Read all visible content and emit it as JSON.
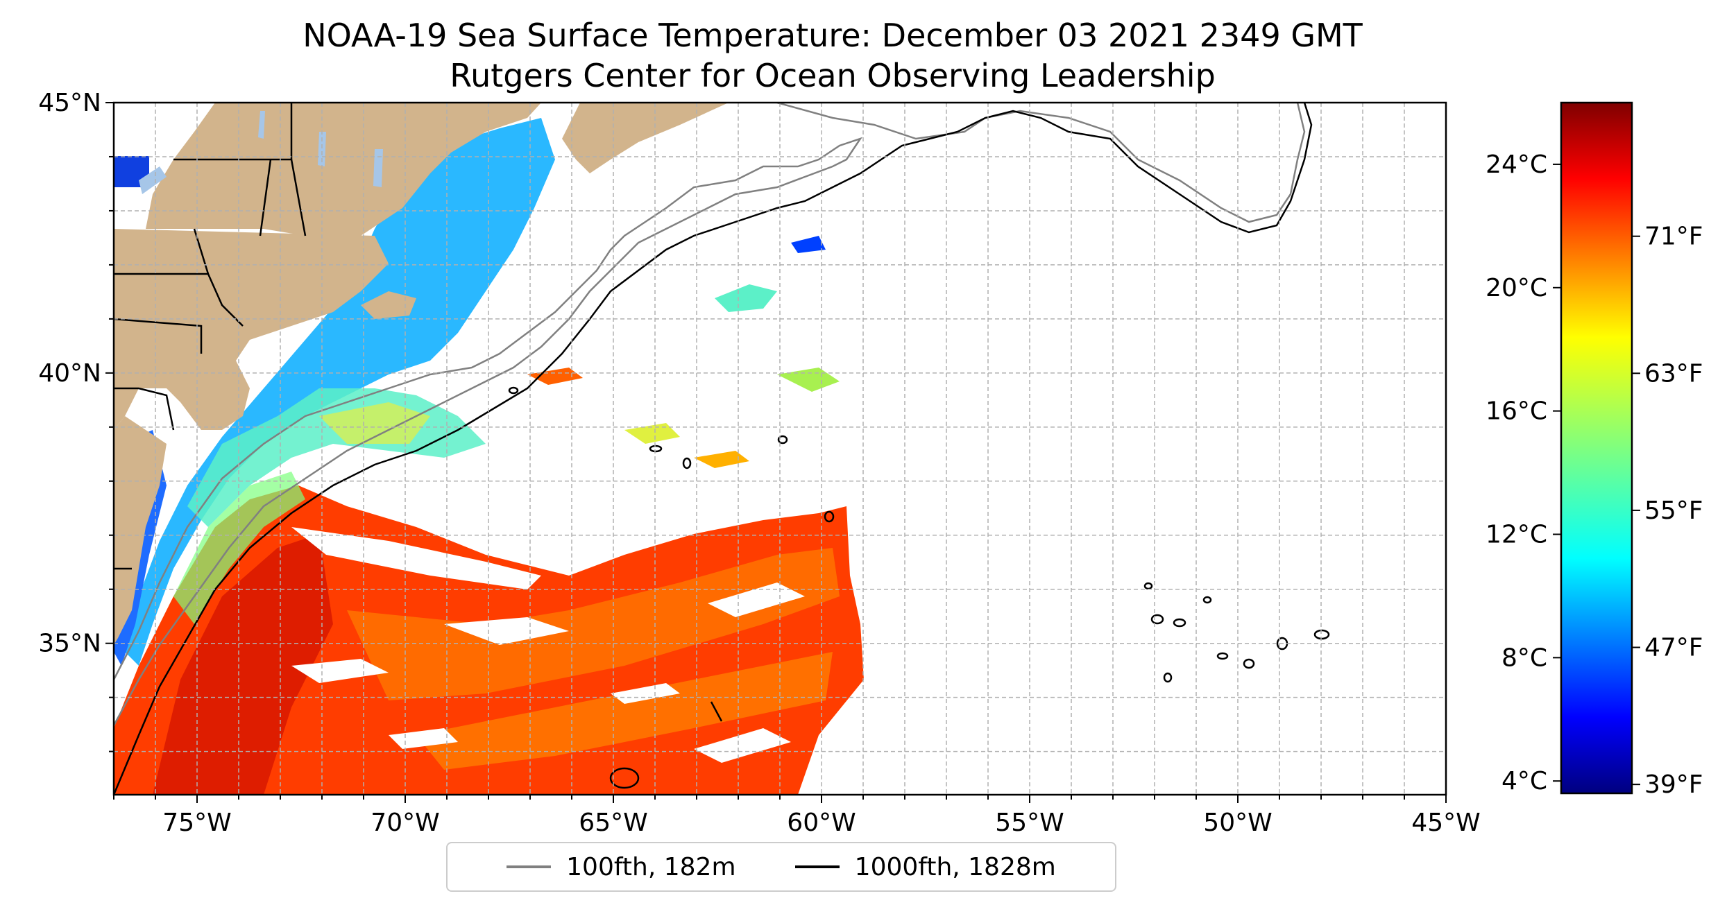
{
  "title": {
    "line1": "NOAA-19 Sea Surface Temperature: December 03 2021 2349 GMT",
    "line2": "Rutgers Center for Ocean Observing Leadership"
  },
  "map": {
    "lon_range": [
      -77,
      -45
    ],
    "lat_range": [
      32.2,
      45
    ],
    "lon_ticks": [
      "75°W",
      "70°W",
      "65°W",
      "60°W",
      "55°W",
      "50°W",
      "45°W"
    ],
    "lat_ticks": [
      "45°N",
      "40°N",
      "35°N"
    ],
    "land_color": "#d2b48c",
    "gridlines": true
  },
  "legend": {
    "items": [
      {
        "label": "100fth, 182m",
        "color": "#808080"
      },
      {
        "label": "1000fth, 1828m",
        "color": "#000000"
      }
    ]
  },
  "colorbar": {
    "colormap": "jet",
    "celsius_labels": [
      "24°C",
      "20°C",
      "16°C",
      "12°C",
      "8°C",
      "4°C"
    ],
    "fahrenheit_labels": [
      "71°F",
      "63°F",
      "55°F",
      "47°F",
      "39°F"
    ],
    "colors": [
      "#00007f",
      "#0000ff",
      "#007fff",
      "#00ffff",
      "#7fff7f",
      "#ffff00",
      "#ff7f00",
      "#ff0000",
      "#7f0000"
    ]
  }
}
